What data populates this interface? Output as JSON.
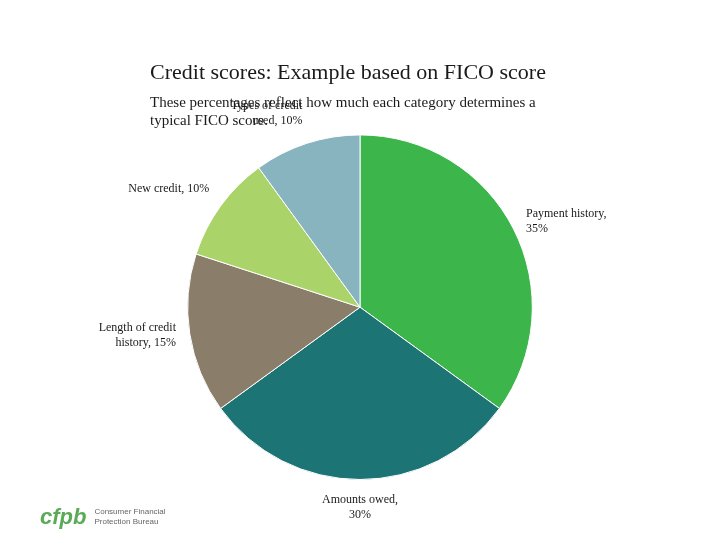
{
  "chart_data": {
    "type": "pie",
    "title": "Credit scores: Example based on FICO score",
    "subtitle": "These percentages reflect how much each category determines a\ntypical FICO score.",
    "categories": [
      "Payment history",
      "Amounts owed",
      "Length of credit history",
      "New credit",
      "Types of credit used"
    ],
    "values": [
      35,
      30,
      15,
      10,
      10
    ],
    "value_labels": [
      "Payment history,\n35%",
      "Amounts owed,\n30%",
      "Length of credit\nhistory, 15%",
      "New credit, 10%",
      "Types of credit\nused, 10%"
    ],
    "colors": [
      "#3cb54a",
      "#1d7474",
      "#8a7d6a",
      "#aad46a",
      "#88b4c0"
    ],
    "data_labels": true,
    "annotations": [
      "cfpb",
      "Consumer Financial\nProtection Bureau"
    ]
  }
}
